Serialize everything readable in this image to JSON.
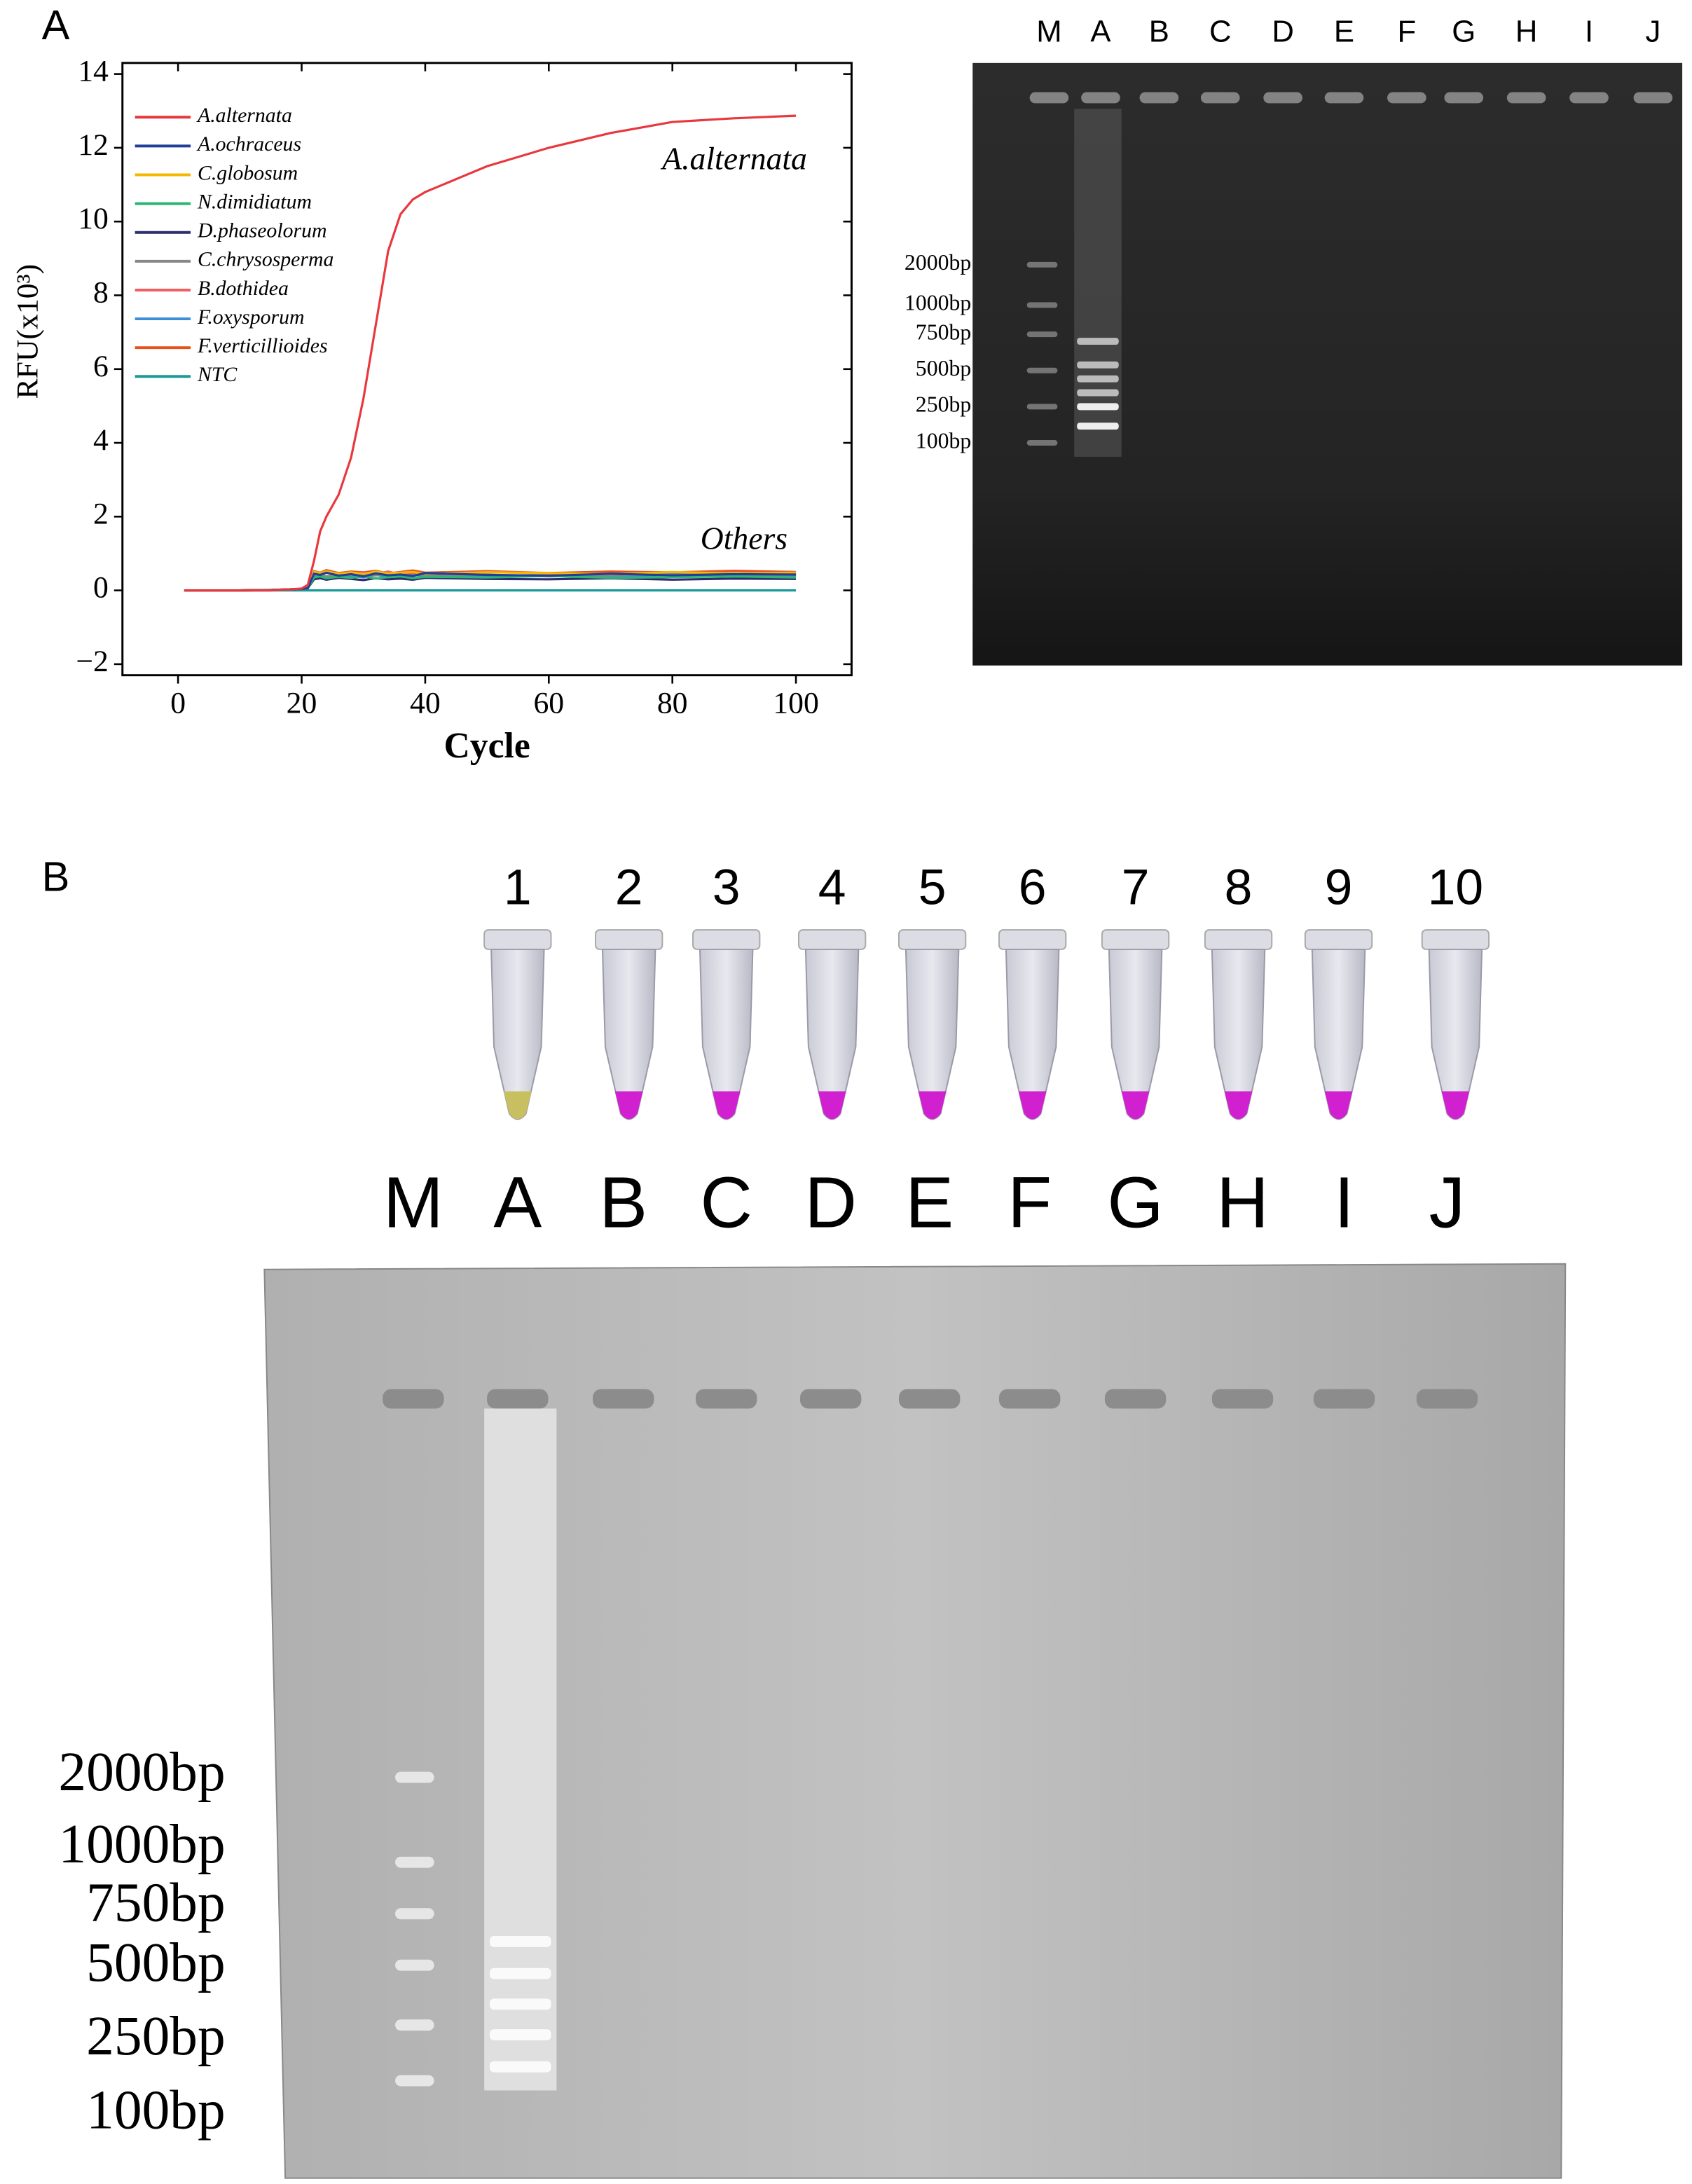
{
  "chart_data": {
    "type": "line",
    "x_label": "Cycle",
    "y_label": "RFU(x10³)",
    "annotations": [
      "A.alternata",
      "Others"
    ],
    "x": [
      1,
      10,
      15,
      20,
      21,
      22,
      23,
      24,
      26,
      28,
      30,
      32,
      34,
      36,
      38,
      40,
      50,
      60,
      70,
      80,
      90,
      100
    ],
    "series": [
      {
        "name": "A.alternata",
        "color": "#e8383d",
        "values": [
          0,
          0,
          0,
          0.05,
          0.15,
          0.8,
          1.6,
          2.0,
          2.6,
          3.6,
          5.2,
          7.2,
          9.2,
          10.2,
          10.6,
          10.8,
          11.5,
          12.0,
          12.4,
          12.7,
          12.8,
          12.87
        ]
      },
      {
        "name": "A.ochraceus",
        "color": "#1f3f99",
        "values": [
          0,
          0,
          0.01,
          0.04,
          0.06,
          0.45,
          0.42,
          0.48,
          0.4,
          0.44,
          0.38,
          0.46,
          0.41,
          0.43,
          0.39,
          0.47,
          0.42,
          0.4,
          0.45,
          0.41,
          0.44,
          0.43
        ]
      },
      {
        "name": "C.globosum",
        "color": "#f5b800",
        "values": [
          0,
          0,
          0.01,
          0.04,
          0.06,
          0.5,
          0.47,
          0.52,
          0.45,
          0.49,
          0.44,
          0.51,
          0.46,
          0.48,
          0.5,
          0.45,
          0.49,
          0.47,
          0.44,
          0.5,
          0.46,
          0.48
        ]
      },
      {
        "name": "N.dimidiatum",
        "color": "#2bb673",
        "values": [
          0,
          0,
          0.01,
          0.04,
          0.06,
          0.35,
          0.38,
          0.33,
          0.37,
          0.34,
          0.39,
          0.32,
          0.36,
          0.38,
          0.33,
          0.37,
          0.35,
          0.39,
          0.34,
          0.36,
          0.38,
          0.35
        ]
      },
      {
        "name": "D.phaseolorum",
        "color": "#2e2e6e",
        "values": [
          0,
          0,
          0.01,
          0.04,
          0.06,
          0.3,
          0.33,
          0.29,
          0.34,
          0.31,
          0.28,
          0.33,
          0.3,
          0.32,
          0.29,
          0.34,
          0.31,
          0.3,
          0.33,
          0.29,
          0.32,
          0.31
        ]
      },
      {
        "name": "C.chrysosperma",
        "color": "#888888",
        "values": [
          0,
          0,
          0.01,
          0.04,
          0.06,
          0.4,
          0.43,
          0.38,
          0.42,
          0.45,
          0.39,
          0.41,
          0.44,
          0.37,
          0.42,
          0.4,
          0.43,
          0.38,
          0.41,
          0.44,
          0.39,
          0.42
        ]
      },
      {
        "name": "B.dothidea",
        "color": "#f06060",
        "values": [
          0,
          0,
          0.01,
          0.04,
          0.06,
          0.48,
          0.44,
          0.5,
          0.46,
          0.42,
          0.49,
          0.45,
          0.51,
          0.43,
          0.47,
          0.44,
          0.5,
          0.46,
          0.42,
          0.48,
          0.45,
          0.47
        ]
      },
      {
        "name": "F.oxysporum",
        "color": "#3a8fd8",
        "values": [
          0,
          0,
          0.01,
          0.04,
          0.06,
          0.38,
          0.41,
          0.36,
          0.43,
          0.39,
          0.35,
          0.42,
          0.37,
          0.4,
          0.44,
          0.36,
          0.39,
          0.41,
          0.37,
          0.43,
          0.38,
          0.4
        ]
      },
      {
        "name": "F.verticillioides",
        "color": "#e8501a",
        "values": [
          0,
          0,
          0.01,
          0.04,
          0.06,
          0.52,
          0.48,
          0.55,
          0.47,
          0.51,
          0.49,
          0.53,
          0.46,
          0.5,
          0.54,
          0.48,
          0.52,
          0.47,
          0.51,
          0.49,
          0.53,
          0.5
        ]
      },
      {
        "name": "NTC",
        "color": "#1a9a9a",
        "values": [
          0,
          0,
          0,
          0,
          0,
          0,
          0,
          0,
          0,
          0,
          0,
          0,
          0,
          0,
          0,
          0,
          0,
          0,
          0,
          0,
          0,
          0
        ]
      }
    ],
    "xlim": [
      -9,
      109
    ],
    "ylim": [
      -2.3,
      14.3
    ],
    "xticks": [
      0,
      20,
      40,
      60,
      80,
      100
    ],
    "yticks": [
      {
        "value": -2,
        "label": "−2"
      },
      0,
      2,
      4,
      6,
      8,
      10,
      12,
      14
    ],
    "legend": "upper left"
  },
  "panel_labels": [
    "A",
    "B"
  ],
  "gel_a": {
    "lanes": [
      "M",
      "A",
      "B",
      "C",
      "D",
      "E",
      "F",
      "G",
      "H",
      "I",
      "J"
    ],
    "ladder": [
      "2000bp",
      "1000bp",
      "750bp",
      "500bp",
      "250bp",
      "100bp"
    ]
  },
  "tubes": [
    "1",
    "2",
    "3",
    "4",
    "5",
    "6",
    "7",
    "8",
    "9",
    "10"
  ],
  "gel_b": {
    "lanes": [
      "M",
      "A",
      "B",
      "C",
      "D",
      "E",
      "F",
      "G",
      "H",
      "I",
      "J"
    ],
    "ladder": [
      "2000bp",
      "1000bp",
      "750bp",
      "500bp",
      "250bp",
      "100bp"
    ]
  }
}
